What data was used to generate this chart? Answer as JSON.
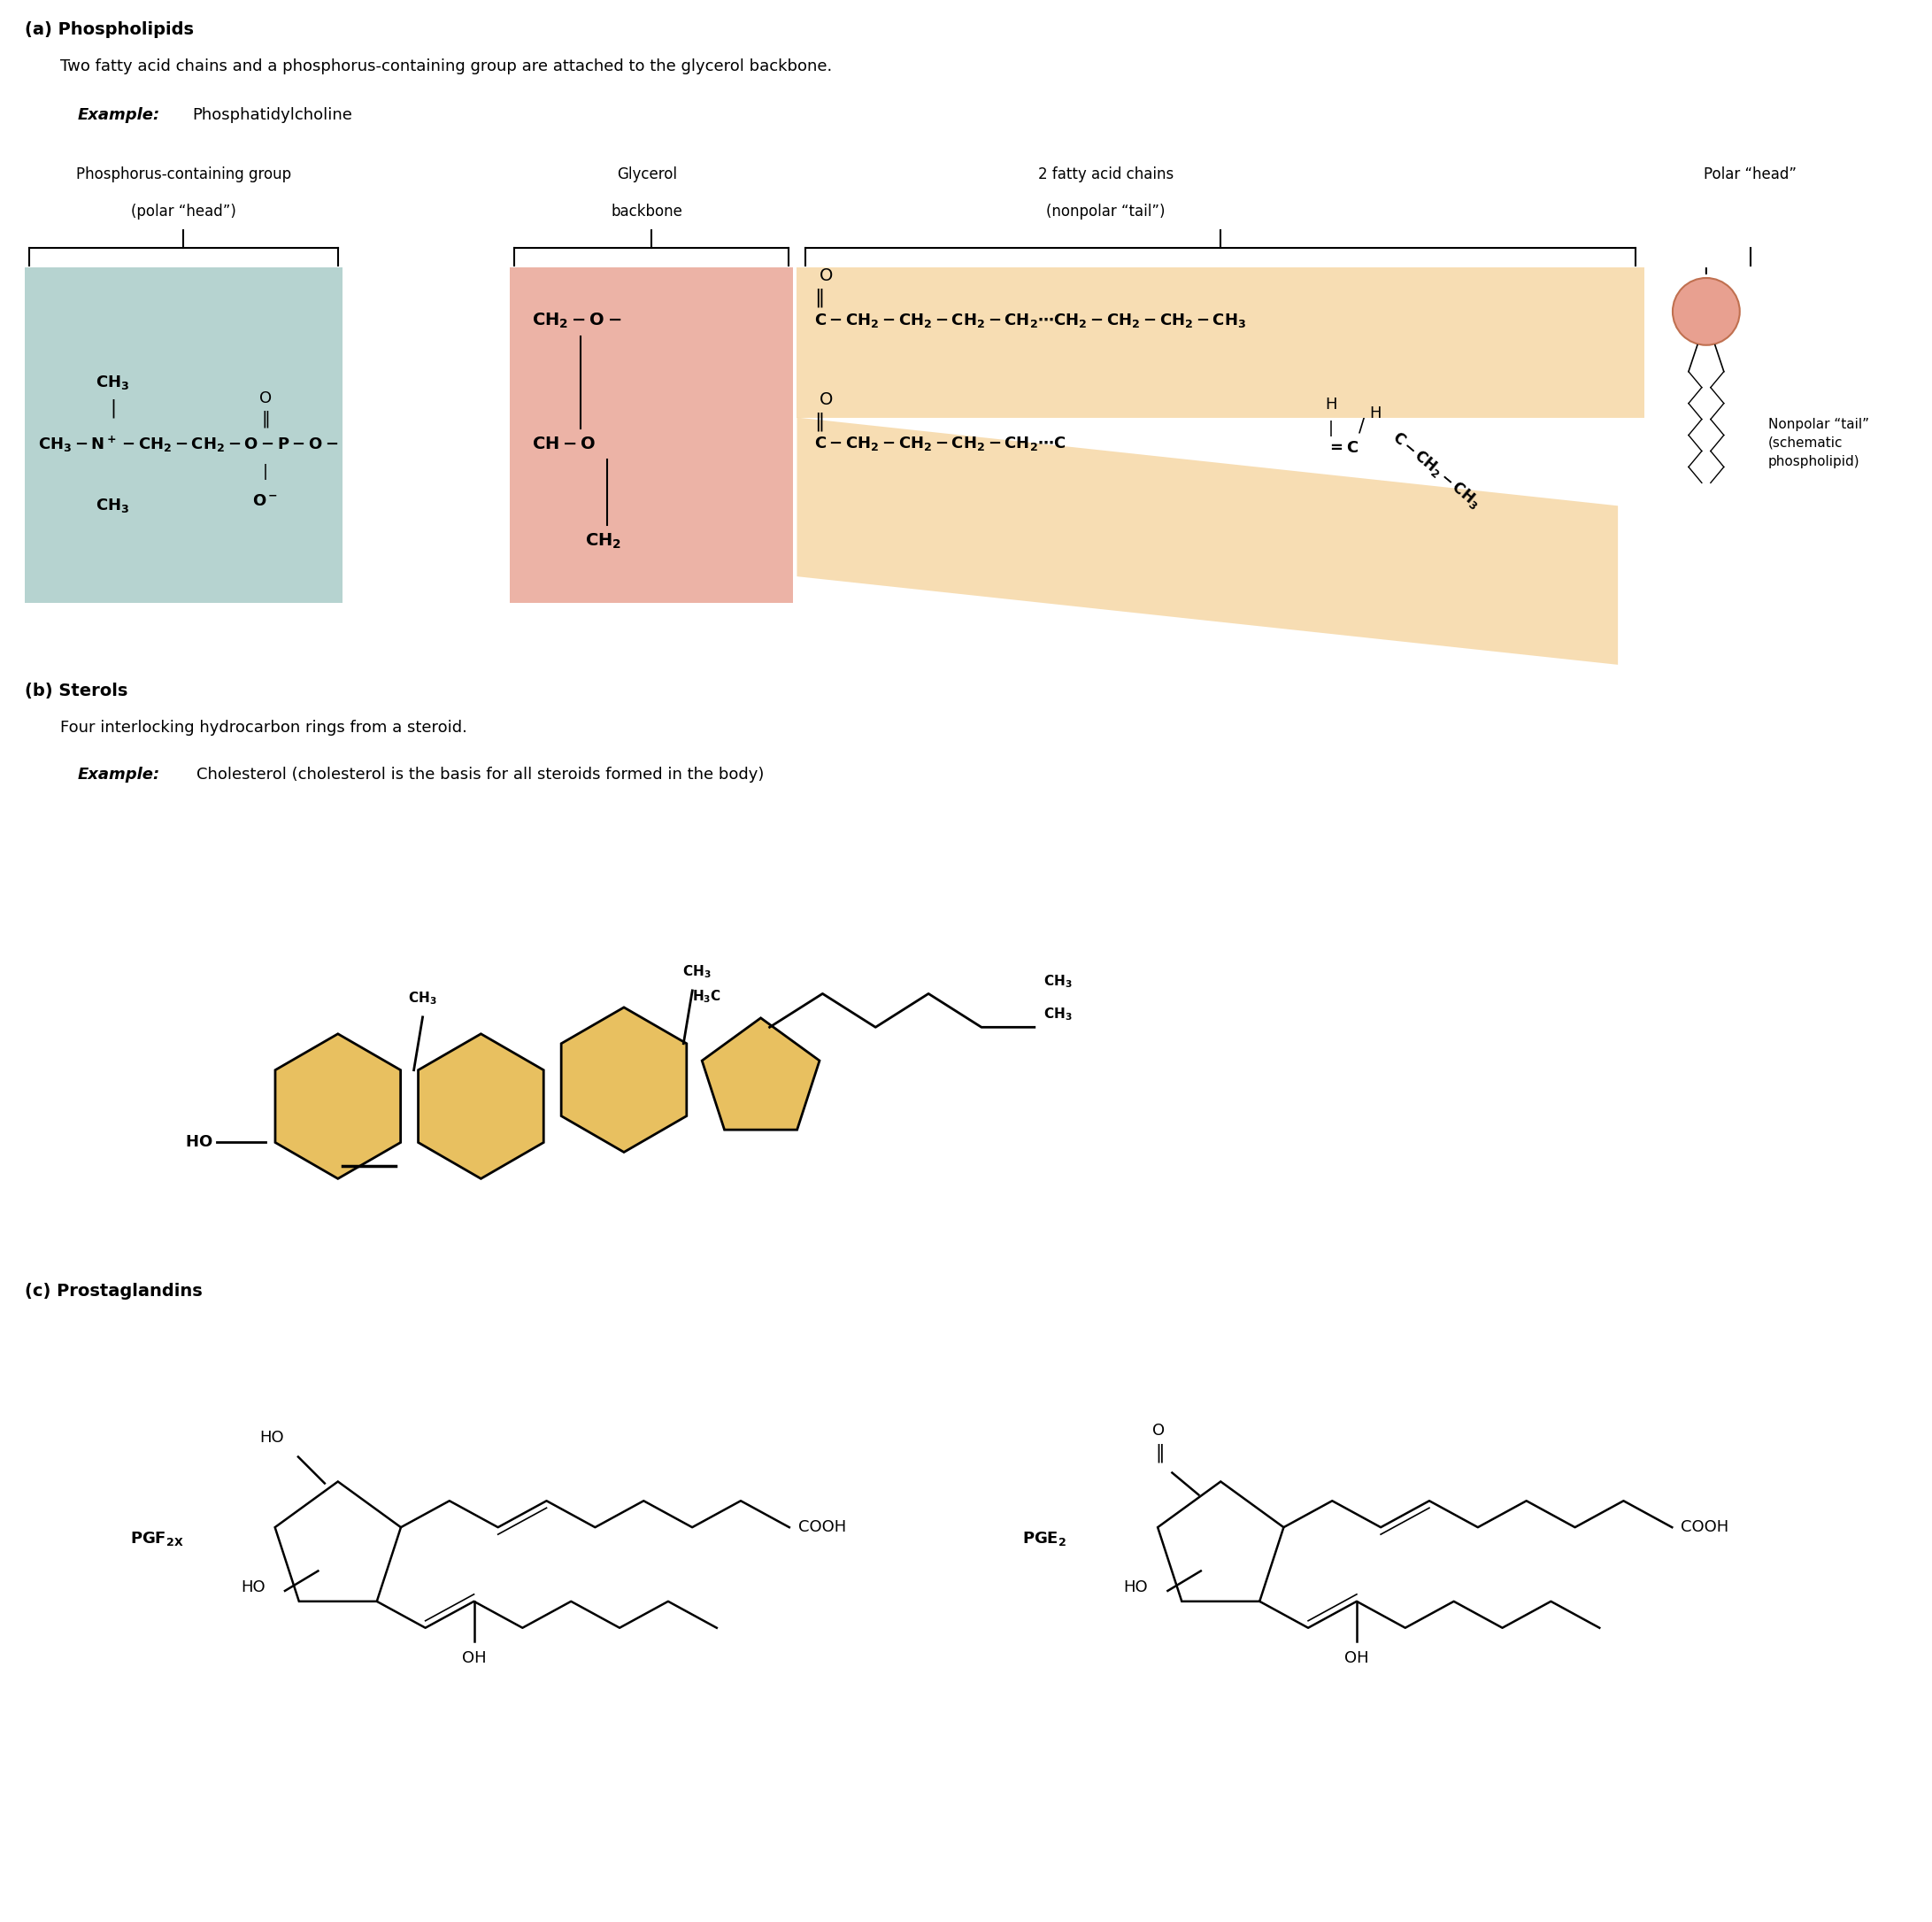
{
  "bg_color": "#ffffff",
  "section_a_label": "(a) Phospholipids",
  "section_a_desc": "Two fatty acid chains and a phosphorus-containing group are attached to the glycerol backbone.",
  "section_b_label": "(b) Sterols",
  "section_b_desc": "Four interlocking hydrocarbon rings from a steroid.",
  "section_b_example_italic": "Example:",
  "section_b_example_rest": "Cholesterol (cholesterol is the basis for all steroids formed in the body)",
  "section_c_label": "(c) Prostaglandins",
  "example_italic": "Example:",
  "example_a_rest": "Phosphatidylcholine",
  "phospho_label1": "Phosphorus-containing group",
  "phospho_label2": "(polar “head”)",
  "glycerol_label1": "Glycerol",
  "glycerol_label2": "backbone",
  "fatty_label1": "2 fatty acid chains",
  "fatty_label2": "(nonpolar “tail”)",
  "polar_head_label": "Polar “head”",
  "nonpolar_tail_label": "Nonpolar “tail”\n(schematic\nphospholipid)",
  "phospho_bg": "#8fbcb8",
  "glycerol_bg": "#e8a090",
  "fatty_bg": "#f5d5a0",
  "cholesterol_color": "#e8c060",
  "circle_color": "#e8a090"
}
